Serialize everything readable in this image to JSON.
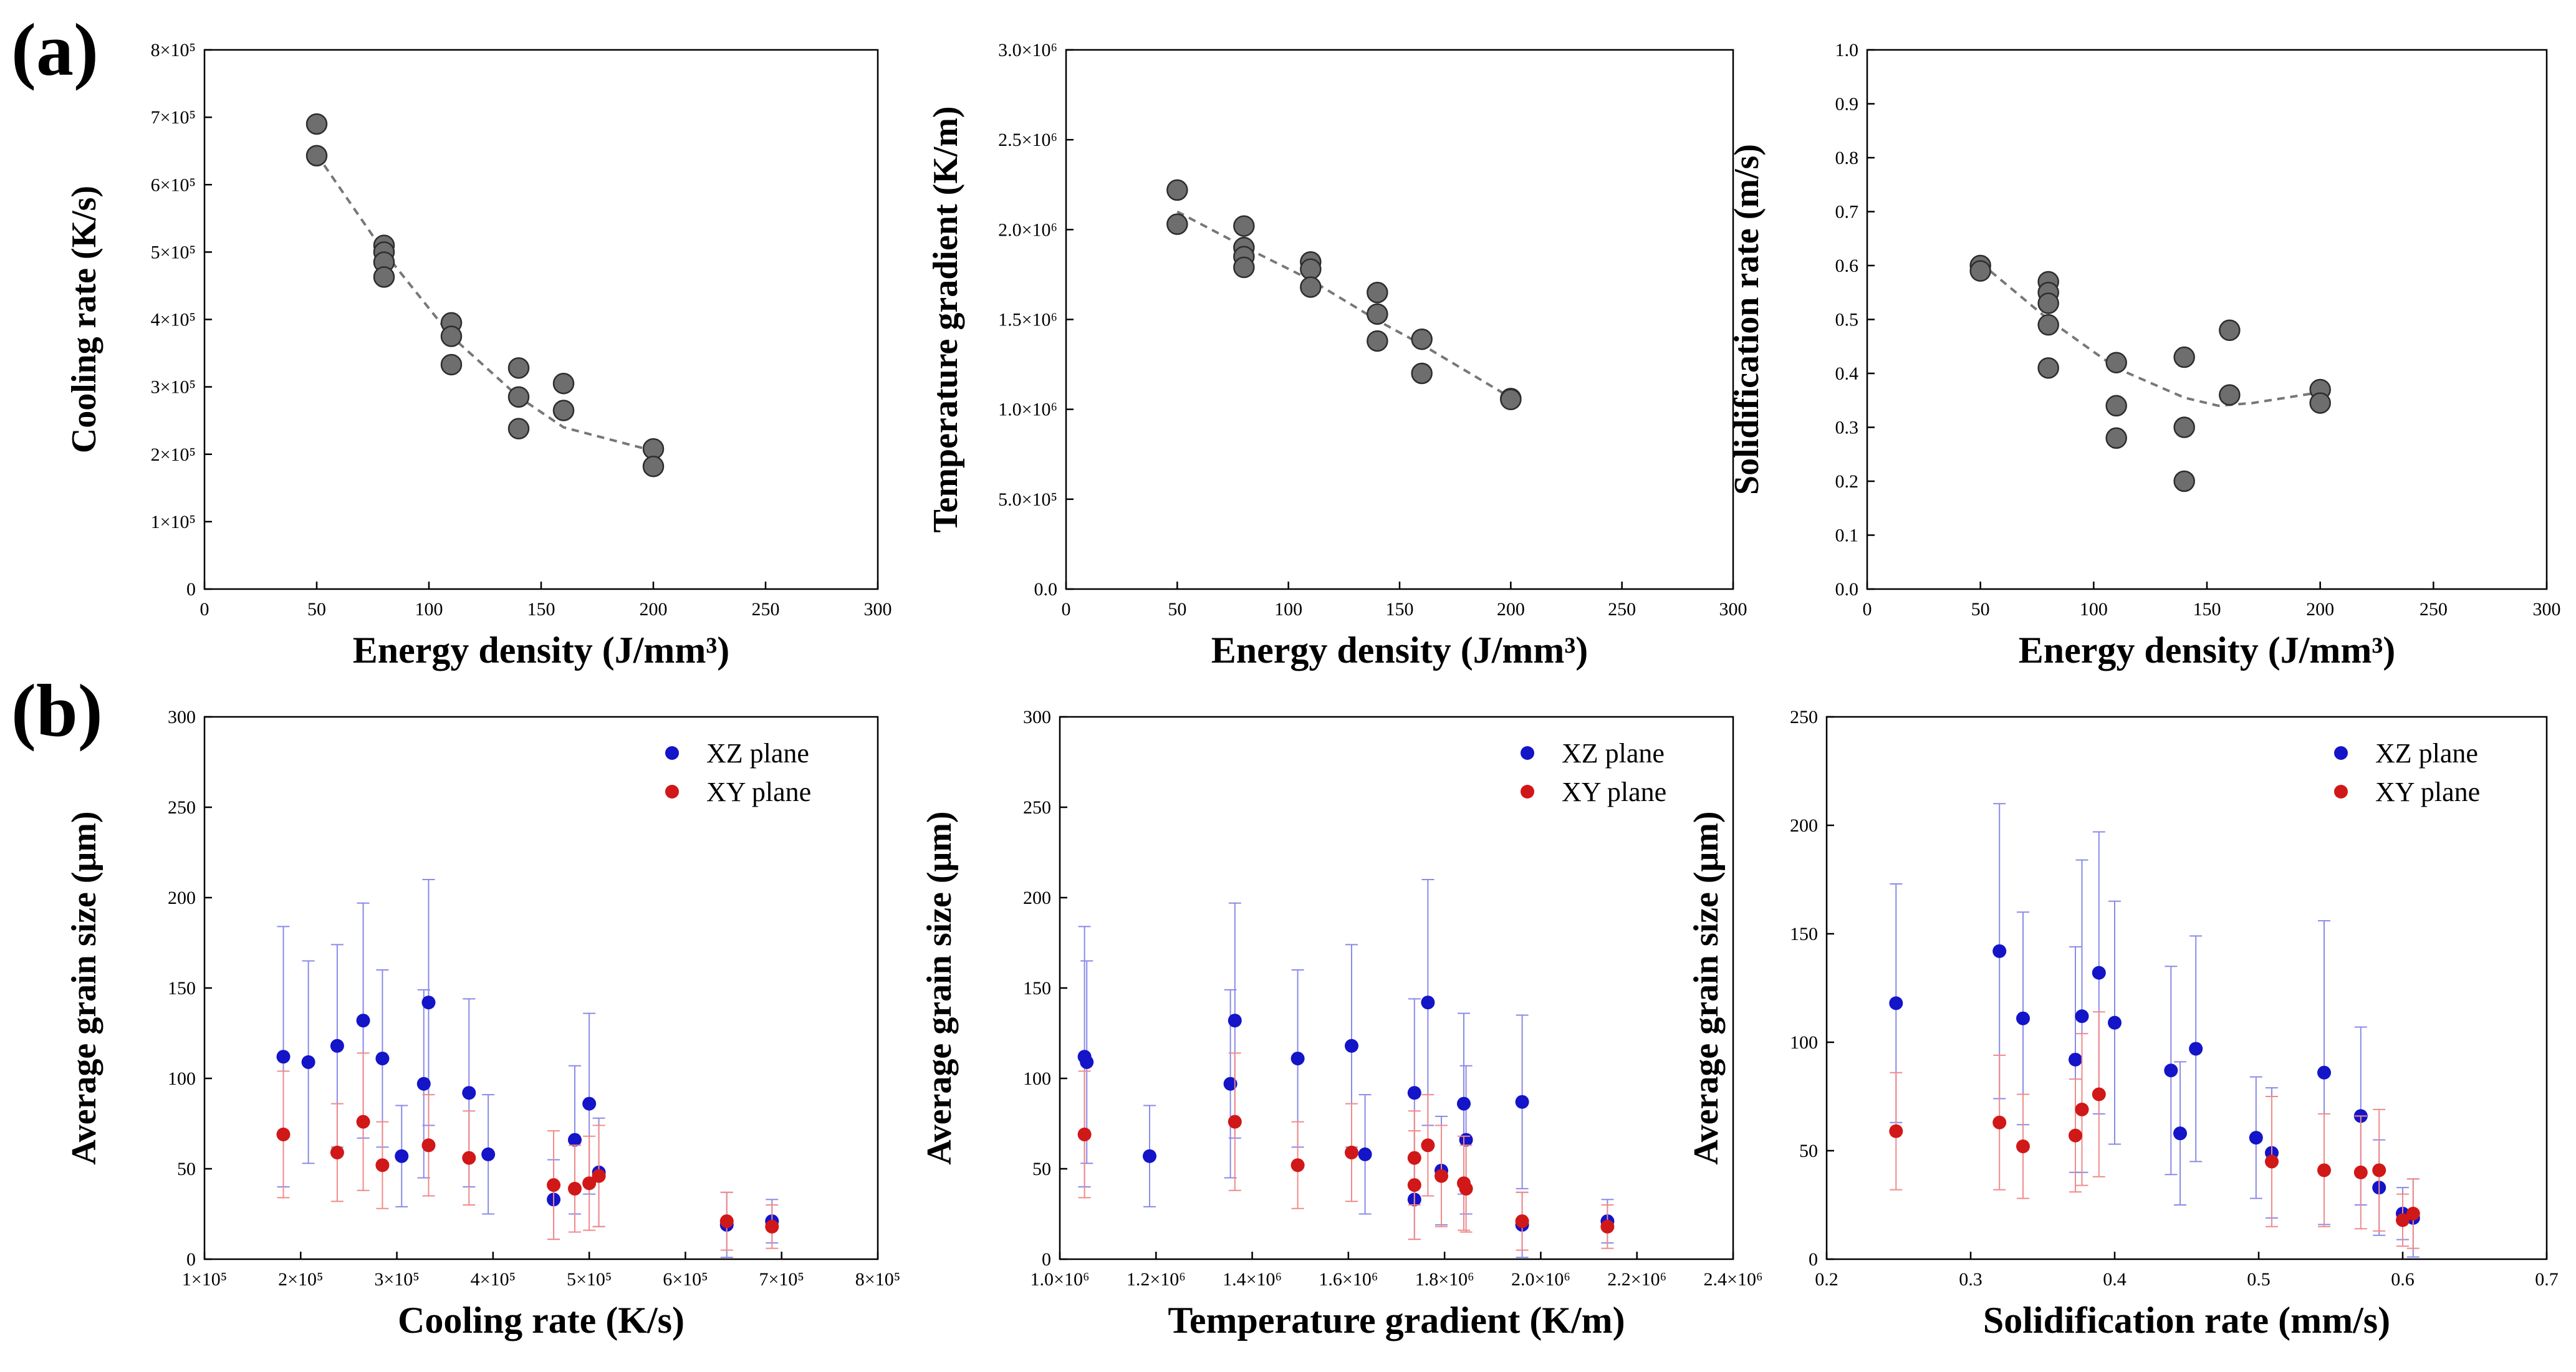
{
  "panel_labels": [
    "(a)",
    "(b)"
  ],
  "colors": {
    "gray_point": "#6e6e6e",
    "fit_line": "#777777",
    "xz": "#1414c8",
    "xy": "#d01818",
    "xz_err": "#8a8ae8",
    "xy_err": "#f08a8a"
  },
  "chart_data": [
    {
      "type": "scatter",
      "xlabel": "Energy density (J/mm³)",
      "ylabel": "Cooling rate (K/s)",
      "xlim": [
        0,
        300
      ],
      "ylim": [
        0,
        800000
      ],
      "xticks": [
        "0",
        "50",
        "100",
        "150",
        "200",
        "250",
        "300"
      ],
      "yticks": [
        "0",
        "1×10⁵",
        "2×10⁵",
        "3×10⁵",
        "4×10⁵",
        "5×10⁵",
        "6×10⁵",
        "7×10⁵",
        "8×10⁵"
      ],
      "points": [
        [
          50,
          690000
        ],
        [
          50,
          643000
        ],
        [
          80,
          510000
        ],
        [
          80,
          500000
        ],
        [
          80,
          485000
        ],
        [
          80,
          463000
        ],
        [
          110,
          395000
        ],
        [
          110,
          375000
        ],
        [
          110,
          333000
        ],
        [
          140,
          328000
        ],
        [
          140,
          285000
        ],
        [
          140,
          238000
        ],
        [
          160,
          305000
        ],
        [
          160,
          265000
        ],
        [
          200,
          208000
        ],
        [
          200,
          182000
        ]
      ],
      "fit": [
        [
          50,
          645000
        ],
        [
          80,
          500000
        ],
        [
          110,
          375000
        ],
        [
          140,
          285000
        ],
        [
          160,
          240000
        ],
        [
          200,
          205000
        ]
      ]
    },
    {
      "type": "scatter",
      "xlabel": "Energy density (J/mm³)",
      "ylabel": "Temperature gradient (K/m)",
      "xlim": [
        0,
        300
      ],
      "ylim": [
        0,
        3000000
      ],
      "xticks": [
        "0",
        "50",
        "100",
        "150",
        "200",
        "250",
        "300"
      ],
      "yticks": [
        "0.0",
        "5.0×10⁵",
        "1.0×10⁶",
        "1.5×10⁶",
        "2.0×10⁶",
        "2.5×10⁶",
        "3.0×10⁶"
      ],
      "points": [
        [
          50,
          2220000
        ],
        [
          50,
          2030000
        ],
        [
          80,
          2020000
        ],
        [
          80,
          1900000
        ],
        [
          80,
          1850000
        ],
        [
          80,
          1790000
        ],
        [
          110,
          1820000
        ],
        [
          110,
          1780000
        ],
        [
          110,
          1680000
        ],
        [
          140,
          1650000
        ],
        [
          140,
          1530000
        ],
        [
          140,
          1380000
        ],
        [
          160,
          1390000
        ],
        [
          160,
          1200000
        ],
        [
          200,
          1060000
        ],
        [
          200,
          1055000
        ]
      ],
      "fit": [
        [
          50,
          2100000
        ],
        [
          80,
          1905000
        ],
        [
          110,
          1720000
        ],
        [
          140,
          1495000
        ],
        [
          160,
          1360000
        ],
        [
          200,
          1065000
        ]
      ]
    },
    {
      "type": "scatter",
      "xlabel": "Energy density (J/mm³)",
      "ylabel": "Solidification rate (m/s)",
      "xlim": [
        0,
        300
      ],
      "ylim": [
        0,
        1.0
      ],
      "xticks": [
        "0",
        "50",
        "100",
        "150",
        "200",
        "250",
        "300"
      ],
      "yticks": [
        "0.0",
        "0.1",
        "0.2",
        "0.3",
        "0.4",
        "0.5",
        "0.6",
        "0.7",
        "0.8",
        "0.9",
        "1.0"
      ],
      "points": [
        [
          50,
          0.6
        ],
        [
          50,
          0.59
        ],
        [
          80,
          0.57
        ],
        [
          80,
          0.55
        ],
        [
          80,
          0.53
        ],
        [
          80,
          0.49
        ],
        [
          80,
          0.41
        ],
        [
          110,
          0.42
        ],
        [
          110,
          0.34
        ],
        [
          110,
          0.28
        ],
        [
          140,
          0.43
        ],
        [
          140,
          0.3
        ],
        [
          140,
          0.2
        ],
        [
          160,
          0.48
        ],
        [
          160,
          0.36
        ],
        [
          200,
          0.37
        ],
        [
          200,
          0.345
        ]
      ],
      "fit": [
        [
          50,
          0.605
        ],
        [
          80,
          0.5
        ],
        [
          110,
          0.41
        ],
        [
          140,
          0.355
        ],
        [
          155,
          0.34
        ],
        [
          170,
          0.345
        ],
        [
          200,
          0.365
        ]
      ]
    },
    {
      "type": "scatter",
      "xlabel": "Cooling rate (K/s)",
      "ylabel": "Average grain size (μm)",
      "xlim": [
        100000,
        800000
      ],
      "ylim": [
        0,
        300
      ],
      "xticks": [
        "1×10⁵",
        "2×10⁵",
        "3×10⁵",
        "4×10⁵",
        "5×10⁵",
        "6×10⁵",
        "7×10⁵",
        "8×10⁵"
      ],
      "yticks": [
        "0",
        "50",
        "100",
        "150",
        "200",
        "250",
        "300"
      ],
      "legend_position": "top-right",
      "series": [
        {
          "name": "XZ plane",
          "color": "xz",
          "points": [
            [
              182000,
              112,
              72
            ],
            [
              208000,
              109,
              56
            ],
            [
              238000,
              118,
              56
            ],
            [
              265000,
              132,
              65
            ],
            [
              285000,
              111,
              49
            ],
            [
              305000,
              57,
              28
            ],
            [
              328000,
              97,
              52
            ],
            [
              333000,
              142,
              68
            ],
            [
              375000,
              92,
              52
            ],
            [
              395000,
              58,
              33
            ],
            [
              463000,
              33,
              22
            ],
            [
              485000,
              66,
              41
            ],
            [
              500000,
              86,
              50
            ],
            [
              510000,
              48,
              30
            ],
            [
              643000,
              19,
              18
            ],
            [
              690000,
              21,
              12
            ]
          ]
        },
        {
          "name": "XY plane",
          "color": "xy",
          "points": [
            [
              182000,
              69,
              35
            ],
            [
              238000,
              59,
              27
            ],
            [
              265000,
              76,
              38
            ],
            [
              285000,
              52,
              24
            ],
            [
              333000,
              63,
              28
            ],
            [
              375000,
              56,
              26
            ],
            [
              463000,
              41,
              30
            ],
            [
              485000,
              39,
              24
            ],
            [
              500000,
              42,
              26
            ],
            [
              510000,
              46,
              28
            ],
            [
              643000,
              21,
              16
            ],
            [
              690000,
              18,
              12
            ]
          ]
        }
      ]
    },
    {
      "type": "scatter",
      "xlabel": "Temperature gradient (K/m)",
      "ylabel": "Average grain size (μm)",
      "xlim": [
        1000000,
        2500000
      ],
      "ylim": [
        0,
        300
      ],
      "xticks": [
        "1.0×10⁶",
        "1.2×10⁶",
        "1.4×10⁶",
        "1.6×10⁶",
        "1.8×10⁶",
        "2.0×10⁶",
        "2.2×10⁶",
        "2.4×10⁶"
      ],
      "yticks": [
        "0",
        "50",
        "100",
        "150",
        "200",
        "250",
        "300"
      ],
      "legend_position": "top-right",
      "series": [
        {
          "name": "XZ plane",
          "color": "xz",
          "points": [
            [
              1055000,
              112,
              72
            ],
            [
              1060000,
              109,
              56
            ],
            [
              1200000,
              57,
              28
            ],
            [
              1380000,
              97,
              52
            ],
            [
              1390000,
              132,
              65
            ],
            [
              1530000,
              111,
              49
            ],
            [
              1650000,
              118,
              56
            ],
            [
              1680000,
              58,
              33
            ],
            [
              1790000,
              33,
              22
            ],
            [
              1790000,
              92,
              52
            ],
            [
              1820000,
              142,
              68
            ],
            [
              1850000,
              49,
              30
            ],
            [
              1900000,
              86,
              50
            ],
            [
              1905000,
              66,
              41
            ],
            [
              2030000,
              87,
              48
            ],
            [
              2030000,
              19,
              18
            ],
            [
              2220000,
              21,
              12
            ]
          ]
        },
        {
          "name": "XY plane",
          "color": "xy",
          "points": [
            [
              1055000,
              69,
              35
            ],
            [
              1390000,
              76,
              38
            ],
            [
              1530000,
              52,
              24
            ],
            [
              1650000,
              59,
              27
            ],
            [
              1790000,
              41,
              30
            ],
            [
              1790000,
              56,
              26
            ],
            [
              1820000,
              63,
              28
            ],
            [
              1850000,
              46,
              28
            ],
            [
              1900000,
              42,
              26
            ],
            [
              1905000,
              39,
              24
            ],
            [
              2030000,
              21,
              16
            ],
            [
              2220000,
              18,
              12
            ]
          ]
        }
      ]
    },
    {
      "type": "scatter",
      "xlabel": "Solidification rate (mm/s)",
      "ylabel": "Average grain size (μm)",
      "xlim": [
        0.15,
        0.7
      ],
      "ylim": [
        0,
        250
      ],
      "xticks": [
        "0.2",
        "0.3",
        "0.4",
        "0.5",
        "0.6",
        "0.7"
      ],
      "yticks": [
        "0",
        "50",
        "100",
        "150",
        "200",
        "250"
      ],
      "legend_position": "top-right",
      "series": [
        {
          "name": "XZ plane",
          "color": "xz",
          "points": [
            [
              0.203,
              118,
              55
            ],
            [
              0.282,
              142,
              68
            ],
            [
              0.3,
              111,
              49
            ],
            [
              0.34,
              92,
              52
            ],
            [
              0.345,
              112,
              72
            ],
            [
              0.358,
              132,
              65
            ],
            [
              0.37,
              109,
              56
            ],
            [
              0.413,
              87,
              48
            ],
            [
              0.42,
              58,
              33
            ],
            [
              0.432,
              97,
              52
            ],
            [
              0.478,
              56,
              28
            ],
            [
              0.49,
              49,
              30
            ],
            [
              0.53,
              86,
              70
            ],
            [
              0.558,
              66,
              41
            ],
            [
              0.572,
              33,
              22
            ],
            [
              0.59,
              21,
              12
            ],
            [
              0.598,
              19,
              18
            ]
          ]
        },
        {
          "name": "XY plane",
          "color": "xy",
          "points": [
            [
              0.203,
              59,
              27
            ],
            [
              0.282,
              63,
              31
            ],
            [
              0.3,
              52,
              24
            ],
            [
              0.34,
              57,
              26
            ],
            [
              0.345,
              69,
              35
            ],
            [
              0.358,
              76,
              38
            ],
            [
              0.49,
              45,
              30
            ],
            [
              0.53,
              41,
              26
            ],
            [
              0.558,
              40,
              26
            ],
            [
              0.572,
              41,
              28
            ],
            [
              0.59,
              18,
              12
            ],
            [
              0.598,
              21,
              16
            ]
          ]
        }
      ]
    }
  ]
}
